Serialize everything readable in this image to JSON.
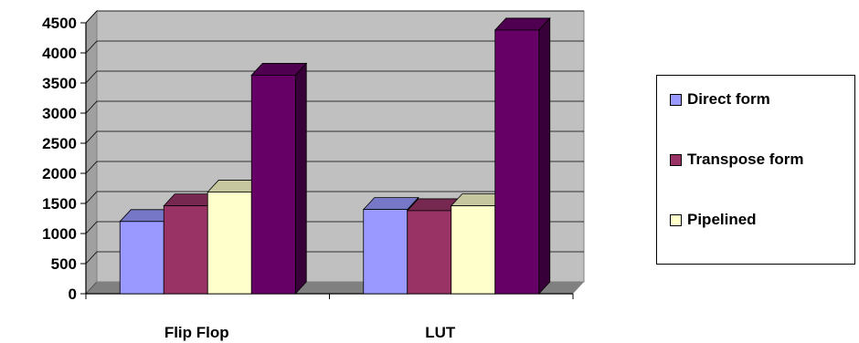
{
  "chart_data": {
    "type": "bar",
    "title": "",
    "xlabel": "",
    "ylabel": "",
    "categories": [
      "Flip Flop",
      "LUT"
    ],
    "series": [
      {
        "name": "Direct form",
        "values": [
          1200,
          1400
        ],
        "color": "#9999ff"
      },
      {
        "name": "Transpose form",
        "values": [
          1460,
          1380
        ],
        "color": "#993366"
      },
      {
        "name": "Pipelined",
        "values": [
          1690,
          1460
        ],
        "color": "#ffffcc"
      },
      {
        "name": "",
        "values": [
          3630,
          4380
        ],
        "color": "#660066"
      }
    ],
    "ylim": [
      0,
      4500
    ],
    "yticks": [
      0,
      500,
      1000,
      1500,
      2000,
      2500,
      3000,
      3500,
      4000,
      4500
    ],
    "grid": true,
    "legend_position": "right",
    "style": "3d-clustered-column",
    "wall_color": "#c0c0c0"
  }
}
